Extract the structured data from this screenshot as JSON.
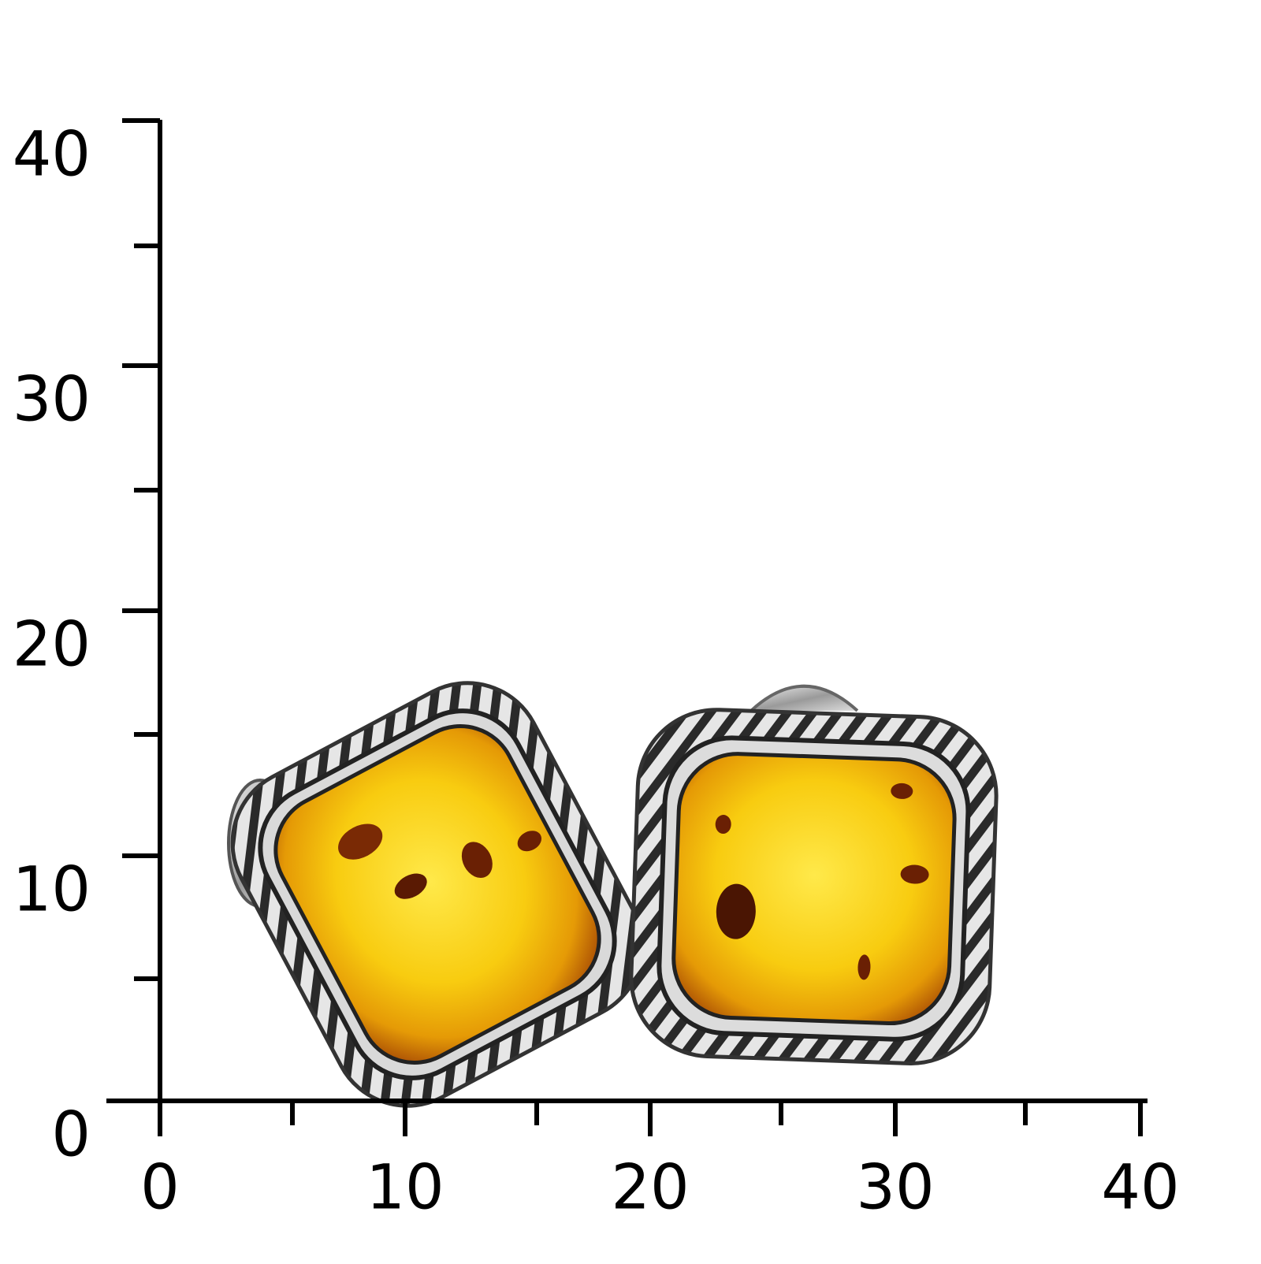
{
  "x_axis": {
    "ticks": [
      0,
      10,
      20,
      30,
      40
    ]
  },
  "y_axis": {
    "ticks": [
      0,
      10,
      20,
      30,
      40
    ]
  }
}
